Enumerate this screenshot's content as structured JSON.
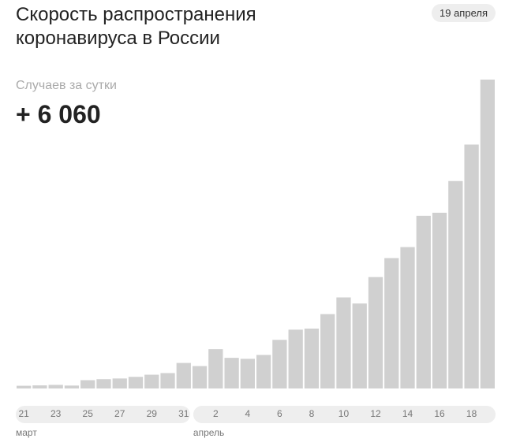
{
  "chart_data": {
    "type": "bar",
    "title": "Скорость распространения коронавируса в России",
    "date": "19 апреля",
    "subtitle": "Случаев за сутки",
    "headline": "+ 6 060",
    "months": [
      {
        "label": "март",
        "index": 0
      },
      {
        "label": "апрель",
        "index": 11
      }
    ],
    "categories": [
      "21",
      null,
      "23",
      null,
      "25",
      null,
      "27",
      null,
      "29",
      null,
      "31",
      null,
      "2",
      null,
      "4",
      null,
      "6",
      null,
      "8",
      null,
      "10",
      null,
      "12",
      null,
      "14",
      null,
      "16",
      null,
      "18",
      null
    ],
    "values": [
      53,
      61,
      71,
      57,
      163,
      182,
      196,
      228,
      270,
      302,
      501,
      440,
      771,
      601,
      582,
      658,
      954,
      1154,
      1175,
      1459,
      1786,
      1667,
      2186,
      2558,
      2774,
      3388,
      3448,
      4070,
      4785,
      6060
    ],
    "color": "#d0d0d0"
  }
}
